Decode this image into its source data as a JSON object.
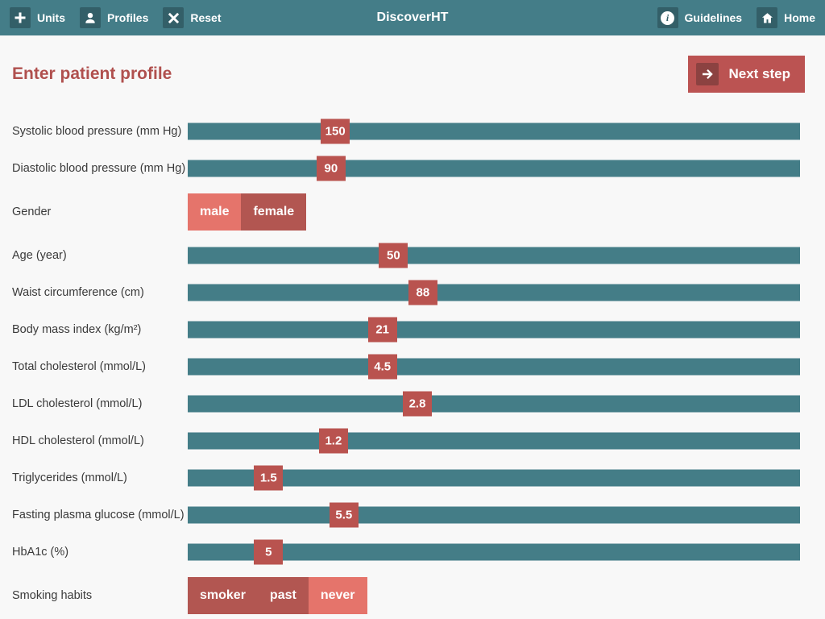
{
  "topbar": {
    "title": "DiscoverHT",
    "left_items": [
      {
        "label": "Units",
        "icon": "plus-icon"
      },
      {
        "label": "Profiles",
        "icon": "person-icon"
      },
      {
        "label": "Reset",
        "icon": "x-icon"
      }
    ],
    "right_items": [
      {
        "label": "Guidelines",
        "icon": "info-icon"
      },
      {
        "label": "Home",
        "icon": "home-icon"
      }
    ]
  },
  "page": {
    "heading": "Enter patient profile",
    "next_step_label": "Next step"
  },
  "colors": {
    "topbar_bg": "#447d88",
    "icon_square_bg": "#335f68",
    "track_teal": "#447d87",
    "handle_red": "#b9534f",
    "toggle_unselected": "#b25651",
    "toggle_selected": "#e5746b",
    "heading_red": "#b0504e",
    "next_button_bg": "#bb5352",
    "next_icon_bg": "#8c4241",
    "page_bg": "#f8f8f8"
  },
  "form": {
    "rows": [
      {
        "type": "slider",
        "label": "Systolic blood pressure (mm Hg)",
        "value": "150",
        "position_pct": 24.1
      },
      {
        "type": "slider",
        "label": "Diastolic blood pressure (mm Hg)",
        "value": "90",
        "position_pct": 23.4
      },
      {
        "type": "toggle",
        "label": "Gender",
        "selected": "male",
        "options": [
          {
            "label": "male",
            "selected": true
          },
          {
            "label": "female",
            "selected": false
          }
        ]
      },
      {
        "type": "slider",
        "label": "Age (year)",
        "value": "50",
        "position_pct": 33.6
      },
      {
        "type": "slider",
        "label": "Waist circumference (cm)",
        "value": "88",
        "position_pct": 38.4
      },
      {
        "type": "slider",
        "label": "Body mass index (kg/m²)",
        "value": "21",
        "position_pct": 31.8
      },
      {
        "type": "slider",
        "label": "Total cholesterol (mmol/L)",
        "value": "4.5",
        "position_pct": 31.8
      },
      {
        "type": "slider",
        "label": "LDL cholesterol (mmol/L)",
        "value": "2.8",
        "position_pct": 37.5
      },
      {
        "type": "slider",
        "label": "HDL cholesterol (mmol/L)",
        "value": "1.2",
        "position_pct": 23.8
      },
      {
        "type": "slider",
        "label": "Triglycerides (mmol/L)",
        "value": "1.5",
        "position_pct": 13.2
      },
      {
        "type": "slider",
        "label": "Fasting plasma glucose (mmol/L)",
        "value": "5.5",
        "position_pct": 25.5
      },
      {
        "type": "slider",
        "label": "HbA1c (%)",
        "value": "5",
        "position_pct": 13.2
      },
      {
        "type": "toggle",
        "label": "Smoking habits",
        "selected": "never",
        "options": [
          {
            "label": "smoker",
            "selected": false
          },
          {
            "label": "past",
            "selected": false
          },
          {
            "label": "never",
            "selected": true
          }
        ]
      }
    ]
  }
}
